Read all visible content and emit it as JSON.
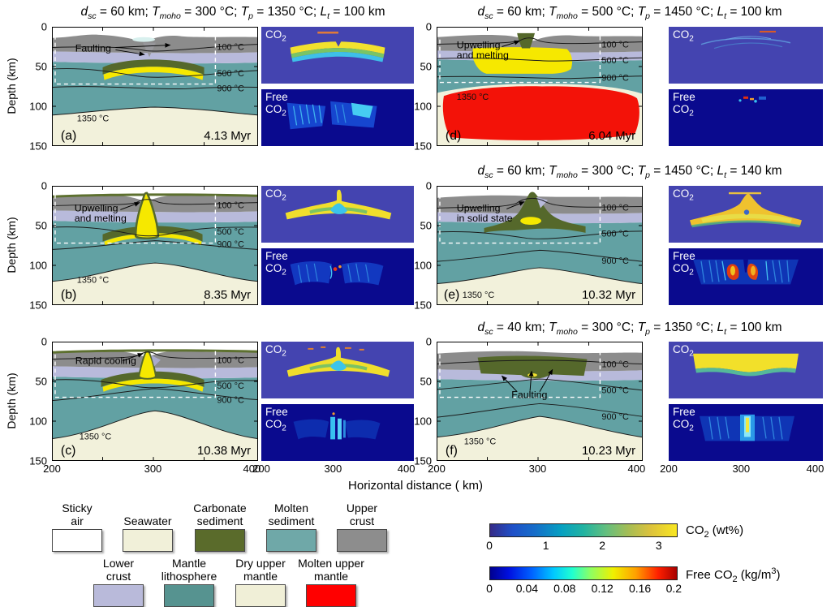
{
  "axes": {
    "ylabel": "Depth (km)",
    "xlabel": "Horizontal distance ( km)",
    "y_ticks": [
      "0",
      "50",
      "100",
      "150"
    ],
    "x_ticks": [
      "200",
      "300",
      "400"
    ]
  },
  "titles": {
    "r1l": [
      {
        "v": "d",
        "s": "sc",
        "r": " = 60 km;  "
      },
      {
        "v": "T",
        "s": "moho",
        "r": " = 300 °C;  "
      },
      {
        "v": "T",
        "s": "p",
        "r": " = 1350 °C;  "
      },
      {
        "v": "L",
        "s": "t",
        "r": " = 100 km"
      }
    ],
    "r1r": [
      {
        "v": "d",
        "s": "sc",
        "r": " = 60 km;  "
      },
      {
        "v": "T",
        "s": "moho",
        "r": " = 500 °C;  "
      },
      {
        "v": "T",
        "s": "p",
        "r": " = 1450 °C;  "
      },
      {
        "v": "L",
        "s": "t",
        "r": " = 100 km"
      }
    ],
    "r2r": [
      {
        "v": "d",
        "s": "sc",
        "r": " = 60 km;  "
      },
      {
        "v": "T",
        "s": "moho",
        "r": " = 300 °C;  "
      },
      {
        "v": "T",
        "s": "p",
        "r": " = 1450 °C;  "
      },
      {
        "v": "L",
        "s": "t",
        "r": " = 140 km"
      }
    ],
    "r3r": [
      {
        "v": "d",
        "s": "sc",
        "r": " = 40 km;  "
      },
      {
        "v": "T",
        "s": "moho",
        "r": " = 300 °C;  "
      },
      {
        "v": "T",
        "s": "p",
        "r": " = 1350 °C;  "
      },
      {
        "v": "L",
        "s": "t",
        "r": " = 100 km"
      }
    ]
  },
  "co2_label": {
    "text": "CO",
    "sub": "2"
  },
  "free_co2_label": {
    "line1": "Free",
    "line2": "CO",
    "sub": "2"
  },
  "panels": [
    {
      "letter": "(a)",
      "time": "4.13 Myr",
      "annotation": [
        "Faulting"
      ],
      "contours": {
        "c100": "100 °C",
        "c500": "500 °C",
        "c900": "900 °C",
        "c1350": "1350 °C"
      }
    },
    {
      "letter": "(b)",
      "time": "8.35 Myr",
      "annotation": [
        "Upwelling",
        "and melting"
      ],
      "contours": {
        "c100": "100 °C",
        "c500": "500 °C",
        "c900": "900 °C",
        "c1350": "1350 °C"
      }
    },
    {
      "letter": "(c)",
      "time": "10.38 Myr",
      "annotation": [
        "Rapid cooling"
      ],
      "contours": {
        "c100": "100 °C",
        "c500": "500 °C",
        "c900": "900 °C",
        "c1350": "1350 °C"
      }
    },
    {
      "letter": "(d)",
      "time": "6.04 Myr",
      "annotation": [
        "Upwelling",
        "and melting"
      ],
      "contours": {
        "c100": "100 °C",
        "c500": "500 °C",
        "c900": "900 °C",
        "c1350": "1350 °C"
      }
    },
    {
      "letter": "(e)",
      "time": "10.32 Myr",
      "annotation": [
        "Upwelling",
        "in solid state"
      ],
      "contours": {
        "c100": "100 °C",
        "c500": "500 °C",
        "c900": "900 °C",
        "c1350": "1350 °C"
      }
    },
    {
      "letter": "(f)",
      "time": "10.23 Myr",
      "annotation": [
        "Faulting"
      ],
      "contours": {
        "c100": "100 °C",
        "c500": "500 °C",
        "c900": "900 °C",
        "c1350": "1350 °C"
      }
    }
  ],
  "legend": {
    "row1": [
      {
        "label_lines": [
          "Sticky",
          "air"
        ],
        "color": "#ffffff"
      },
      {
        "label_lines": [
          "Seawater"
        ],
        "color": "#f1f0d9"
      },
      {
        "label_lines": [
          "Carbonate",
          "sediment"
        ],
        "color": "#5a6b2b"
      },
      {
        "label_lines": [
          "Molten",
          "sediment"
        ],
        "color": "#6fa8a8"
      },
      {
        "label_lines": [
          "Upper",
          "crust"
        ],
        "color": "#8d8d8d"
      }
    ],
    "row2": [
      {
        "label_lines": [
          "Lower",
          "crust"
        ],
        "color": "#b9bada"
      },
      {
        "label_lines": [
          "Mantle",
          "lithosphere"
        ],
        "color": "#569390"
      },
      {
        "label_lines": [
          "Dry upper",
          "mantle"
        ],
        "color": "#f0efd7"
      },
      {
        "label_lines": [
          "Molten upper",
          "mantle"
        ],
        "color": "#ff0000"
      }
    ]
  },
  "colorbars": [
    {
      "pre": "CO",
      "sub": "2",
      "post": " (wt%)",
      "ticks": [
        "0",
        "1",
        "2",
        "3"
      ]
    },
    {
      "pre": "Free CO",
      "sub": "2",
      "post": " (kg/m",
      "sup": "3",
      "post2": ")",
      "ticks": [
        "0",
        "0.04",
        "0.08",
        "0.12",
        "0.16",
        "0.2"
      ]
    }
  ],
  "chart_data": {
    "type": "heatmap",
    "description": "2x3 grid of geodynamic model cross-sections (rock composition with isotherms) each paired with CO2 (wt%) and free CO2 (kg/m3) concentration subpanels",
    "x_axis": {
      "label": "Horizontal distance ( km)",
      "ticks": [
        200,
        300,
        400
      ],
      "range_km": [
        200,
        405
      ]
    },
    "y_axis": {
      "label": "Depth (km)",
      "ticks": [
        0,
        50,
        100,
        150
      ],
      "range_km": [
        0,
        150
      ]
    },
    "isotherms_C": [
      100,
      500,
      900,
      1350
    ],
    "panels": [
      {
        "id": "a",
        "params": {
          "d_sc_km": 60,
          "T_moho_C": 300,
          "T_p_C": 1350,
          "L_t_km": 100
        },
        "time_Myr": 4.13,
        "feature": "Faulting"
      },
      {
        "id": "b",
        "params": {
          "d_sc_km": 60,
          "T_moho_C": 300,
          "T_p_C": 1350,
          "L_t_km": 100
        },
        "time_Myr": 8.35,
        "feature": "Upwelling and melting"
      },
      {
        "id": "c",
        "params": {
          "d_sc_km": 60,
          "T_moho_C": 300,
          "T_p_C": 1350,
          "L_t_km": 100
        },
        "time_Myr": 10.38,
        "feature": "Rapid cooling"
      },
      {
        "id": "d",
        "params": {
          "d_sc_km": 60,
          "T_moho_C": 500,
          "T_p_C": 1450,
          "L_t_km": 100
        },
        "time_Myr": 6.04,
        "feature": "Upwelling and melting"
      },
      {
        "id": "e",
        "params": {
          "d_sc_km": 60,
          "T_moho_C": 300,
          "T_p_C": 1450,
          "L_t_km": 140
        },
        "time_Myr": 10.32,
        "feature": "Upwelling in solid state"
      },
      {
        "id": "f",
        "params": {
          "d_sc_km": 40,
          "T_moho_C": 300,
          "T_p_C": 1350,
          "L_t_km": 100
        },
        "time_Myr": 10.23,
        "feature": "Faulting"
      }
    ],
    "colorbars": [
      {
        "label": "CO2 (wt%)",
        "ticks": [
          0,
          1,
          2,
          3
        ],
        "range": [
          0,
          3.3
        ],
        "colormap": "parula"
      },
      {
        "label": "Free CO2 (kg/m3)",
        "ticks": [
          0,
          0.04,
          0.08,
          0.12,
          0.16,
          0.2
        ],
        "range": [
          0,
          0.21
        ],
        "colormap": "jet"
      }
    ],
    "legend_materials": [
      "Sticky air",
      "Seawater",
      "Carbonate sediment",
      "Molten sediment",
      "Upper crust",
      "Lower crust",
      "Mantle lithosphere",
      "Dry upper mantle",
      "Molten upper mantle"
    ]
  }
}
